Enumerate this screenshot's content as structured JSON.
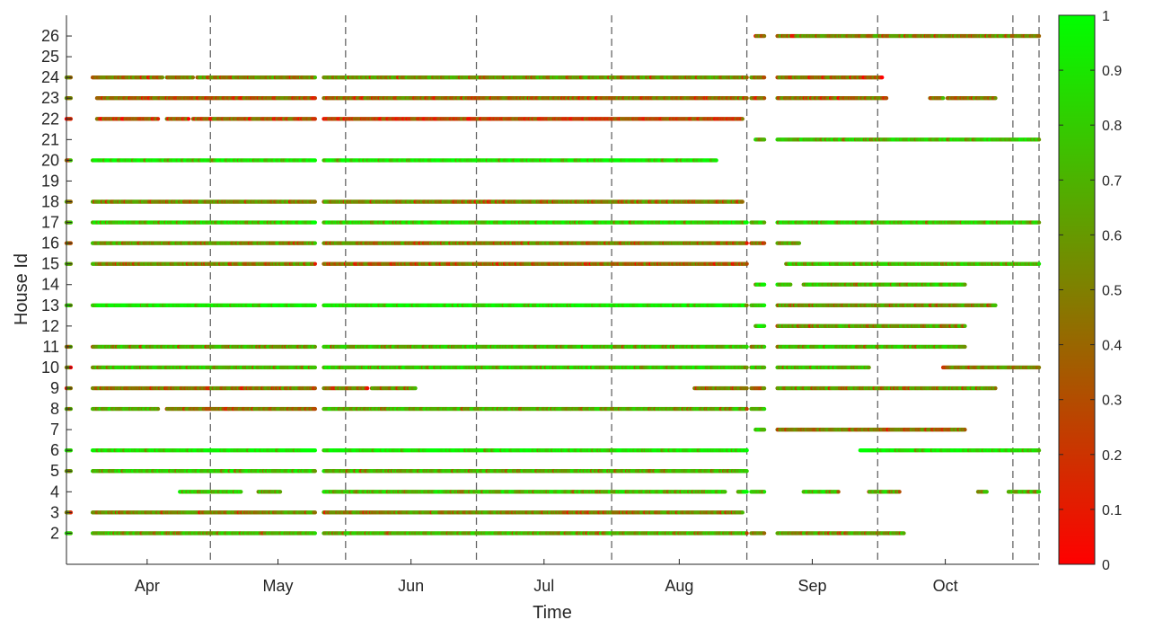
{
  "chart_data": {
    "type": "scatter",
    "title": "",
    "xlabel": "Time",
    "ylabel": "House Id",
    "x_tick_labels": [
      "Apr",
      "May",
      "Jun",
      "Jul",
      "Aug",
      "Sep",
      "Oct"
    ],
    "y_ticks": [
      2,
      3,
      4,
      5,
      6,
      7,
      8,
      9,
      10,
      11,
      12,
      13,
      14,
      15,
      16,
      17,
      18,
      19,
      20,
      21,
      22,
      23,
      24,
      25,
      26
    ],
    "y_tick_labels": [
      "2",
      "3",
      "4",
      "5",
      "6",
      "7",
      "8",
      "9",
      "10",
      "11",
      "12",
      "13",
      "14",
      "15",
      "16",
      "17",
      "18",
      "19",
      "20",
      "21",
      "22",
      "23",
      "24",
      "25",
      "26"
    ],
    "xlim": [
      "2022-03-13",
      "2022-10-22"
    ],
    "ylim": [
      0.5,
      27
    ],
    "month_boundaries": [
      "2022-04-15",
      "2022-05-16",
      "2022-06-15",
      "2022-07-16",
      "2022-08-16",
      "2022-09-15",
      "2022-10-16",
      "2022-10-22"
    ],
    "grid": false,
    "colorbar": {
      "min": 0,
      "max": 1,
      "ticks": [
        0,
        0.1,
        0.2,
        0.3,
        0.4,
        0.5,
        0.6,
        0.7,
        0.8,
        0.9,
        1
      ],
      "tick_labels": [
        "0",
        "0.1",
        "0.2",
        "0.3",
        "0.4",
        "0.5",
        "0.6",
        "0.7",
        "0.8",
        "0.9",
        "1"
      ],
      "color_low": "#ff0000",
      "color_high": "#00ff00"
    },
    "series": [
      {
        "house": 26,
        "segments": [
          [
            "2022-08-18",
            "2022-08-20",
            0.5
          ],
          [
            "2022-08-23",
            "2022-10-22",
            0.55
          ]
        ]
      },
      {
        "house": 24,
        "segments": [
          [
            "2022-03-13",
            "2022-03-14",
            0.5
          ],
          [
            "2022-03-19",
            "2022-04-04",
            0.5
          ],
          [
            "2022-04-05",
            "2022-04-11",
            0.6
          ],
          [
            "2022-04-12",
            "2022-05-09",
            0.55
          ],
          [
            "2022-05-11",
            "2022-08-16",
            0.6
          ],
          [
            "2022-08-17",
            "2022-08-20",
            0.5
          ],
          [
            "2022-08-23",
            "2022-09-16",
            0.45
          ]
        ]
      },
      {
        "house": 23,
        "segments": [
          [
            "2022-03-13",
            "2022-03-14",
            0.45
          ],
          [
            "2022-03-20",
            "2022-05-09",
            0.4
          ],
          [
            "2022-05-11",
            "2022-08-16",
            0.45
          ],
          [
            "2022-08-17",
            "2022-08-20",
            0.45
          ],
          [
            "2022-08-23",
            "2022-09-17",
            0.45
          ],
          [
            "2022-09-27",
            "2022-09-30",
            0.55
          ],
          [
            "2022-10-01",
            "2022-10-12",
            0.5
          ]
        ]
      },
      {
        "house": 22,
        "segments": [
          [
            "2022-03-13",
            "2022-03-14",
            0.1
          ],
          [
            "2022-03-20",
            "2022-04-03",
            0.35
          ],
          [
            "2022-04-05",
            "2022-04-10",
            0.4
          ],
          [
            "2022-04-11",
            "2022-05-09",
            0.4
          ],
          [
            "2022-05-11",
            "2022-08-15",
            0.3
          ]
        ]
      },
      {
        "house": 21,
        "segments": [
          [
            "2022-08-18",
            "2022-08-20",
            0.75
          ],
          [
            "2022-08-23",
            "2022-10-22",
            0.8
          ]
        ]
      },
      {
        "house": 20,
        "segments": [
          [
            "2022-03-13",
            "2022-03-14",
            0.6
          ],
          [
            "2022-03-19",
            "2022-05-09",
            0.92
          ],
          [
            "2022-05-11",
            "2022-08-09",
            0.95
          ]
        ]
      },
      {
        "house": 18,
        "segments": [
          [
            "2022-03-13",
            "2022-03-14",
            0.55
          ],
          [
            "2022-03-19",
            "2022-05-09",
            0.55
          ],
          [
            "2022-05-11",
            "2022-08-15",
            0.55
          ]
        ]
      },
      {
        "house": 17,
        "segments": [
          [
            "2022-03-13",
            "2022-03-14",
            0.75
          ],
          [
            "2022-03-19",
            "2022-05-09",
            0.85
          ],
          [
            "2022-05-11",
            "2022-08-16",
            0.85
          ],
          [
            "2022-08-17",
            "2022-08-20",
            0.75
          ],
          [
            "2022-08-23",
            "2022-10-22",
            0.8
          ]
        ]
      },
      {
        "house": 16,
        "segments": [
          [
            "2022-03-13",
            "2022-03-14",
            0.45
          ],
          [
            "2022-03-19",
            "2022-05-09",
            0.6
          ],
          [
            "2022-05-11",
            "2022-08-16",
            0.55
          ],
          [
            "2022-08-17",
            "2022-08-20",
            0.45
          ],
          [
            "2022-08-23",
            "2022-08-28",
            0.6
          ]
        ]
      },
      {
        "house": 15,
        "segments": [
          [
            "2022-03-13",
            "2022-03-14",
            0.7
          ],
          [
            "2022-03-19",
            "2022-05-09",
            0.55
          ],
          [
            "2022-05-11",
            "2022-08-16",
            0.45
          ],
          [
            "2022-08-25",
            "2022-10-22",
            0.75
          ]
        ]
      },
      {
        "house": 14,
        "segments": [
          [
            "2022-08-18",
            "2022-08-20",
            0.85
          ],
          [
            "2022-08-23",
            "2022-08-26",
            0.8
          ],
          [
            "2022-08-29",
            "2022-10-05",
            0.75
          ]
        ]
      },
      {
        "house": 13,
        "segments": [
          [
            "2022-03-13",
            "2022-03-14",
            0.9
          ],
          [
            "2022-03-19",
            "2022-05-09",
            0.95
          ],
          [
            "2022-05-11",
            "2022-08-16",
            0.95
          ],
          [
            "2022-08-17",
            "2022-08-20",
            0.8
          ],
          [
            "2022-08-23",
            "2022-10-12",
            0.6
          ]
        ]
      },
      {
        "house": 12,
        "segments": [
          [
            "2022-08-18",
            "2022-08-20",
            0.85
          ],
          [
            "2022-08-23",
            "2022-10-05",
            0.65
          ]
        ]
      },
      {
        "house": 11,
        "segments": [
          [
            "2022-03-13",
            "2022-03-14",
            0.6
          ],
          [
            "2022-03-19",
            "2022-05-09",
            0.7
          ],
          [
            "2022-05-11",
            "2022-08-16",
            0.75
          ],
          [
            "2022-08-17",
            "2022-08-20",
            0.65
          ],
          [
            "2022-08-23",
            "2022-10-05",
            0.75
          ]
        ]
      },
      {
        "house": 10,
        "segments": [
          [
            "2022-03-13",
            "2022-03-14",
            0.45
          ],
          [
            "2022-03-19",
            "2022-05-09",
            0.75
          ],
          [
            "2022-05-11",
            "2022-08-16",
            0.8
          ],
          [
            "2022-08-17",
            "2022-08-20",
            0.75
          ],
          [
            "2022-08-23",
            "2022-09-13",
            0.75
          ],
          [
            "2022-09-30",
            "2022-10-22",
            0.55
          ]
        ]
      },
      {
        "house": 9,
        "segments": [
          [
            "2022-03-13",
            "2022-03-14",
            0.55
          ],
          [
            "2022-03-19",
            "2022-05-09",
            0.5
          ],
          [
            "2022-05-11",
            "2022-05-21",
            0.5
          ],
          [
            "2022-05-22",
            "2022-06-01",
            0.6
          ],
          [
            "2022-08-04",
            "2022-08-16",
            0.5
          ],
          [
            "2022-08-17",
            "2022-08-20",
            0.45
          ],
          [
            "2022-08-23",
            "2022-10-12",
            0.6
          ]
        ]
      },
      {
        "house": 8,
        "segments": [
          [
            "2022-03-13",
            "2022-03-14",
            0.6
          ],
          [
            "2022-03-19",
            "2022-04-03",
            0.7
          ],
          [
            "2022-04-05",
            "2022-05-09",
            0.5
          ],
          [
            "2022-05-11",
            "2022-08-16",
            0.7
          ],
          [
            "2022-08-17",
            "2022-08-20",
            0.7
          ]
        ]
      },
      {
        "house": 7,
        "segments": [
          [
            "2022-08-18",
            "2022-08-20",
            0.75
          ],
          [
            "2022-08-23",
            "2022-10-05",
            0.5
          ]
        ]
      },
      {
        "house": 6,
        "segments": [
          [
            "2022-03-13",
            "2022-03-14",
            0.85
          ],
          [
            "2022-03-19",
            "2022-05-09",
            0.95
          ],
          [
            "2022-05-11",
            "2022-08-16",
            0.95
          ],
          [
            "2022-09-11",
            "2022-10-22",
            0.95
          ]
        ]
      },
      {
        "house": 5,
        "segments": [
          [
            "2022-03-13",
            "2022-03-14",
            0.75
          ],
          [
            "2022-03-19",
            "2022-05-09",
            0.8
          ],
          [
            "2022-05-11",
            "2022-08-16",
            0.7
          ]
        ]
      },
      {
        "house": 4,
        "segments": [
          [
            "2022-04-08",
            "2022-04-22",
            0.8
          ],
          [
            "2022-04-26",
            "2022-05-01",
            0.7
          ],
          [
            "2022-05-11",
            "2022-08-11",
            0.75
          ],
          [
            "2022-08-14",
            "2022-08-16",
            0.8
          ],
          [
            "2022-08-17",
            "2022-08-20",
            0.75
          ],
          [
            "2022-08-29",
            "2022-09-06",
            0.8
          ],
          [
            "2022-09-13",
            "2022-09-20",
            0.75
          ],
          [
            "2022-10-08",
            "2022-10-10",
            0.6
          ],
          [
            "2022-10-15",
            "2022-10-22",
            0.7
          ]
        ]
      },
      {
        "house": 3,
        "segments": [
          [
            "2022-03-13",
            "2022-03-14",
            0.6
          ],
          [
            "2022-03-19",
            "2022-05-09",
            0.55
          ],
          [
            "2022-05-11",
            "2022-08-15",
            0.55
          ]
        ]
      },
      {
        "house": 2,
        "segments": [
          [
            "2022-03-13",
            "2022-03-14",
            0.7
          ],
          [
            "2022-03-19",
            "2022-05-09",
            0.7
          ],
          [
            "2022-05-11",
            "2022-08-16",
            0.7
          ],
          [
            "2022-08-17",
            "2022-08-20",
            0.5
          ],
          [
            "2022-08-23",
            "2022-09-21",
            0.65
          ]
        ]
      }
    ]
  }
}
